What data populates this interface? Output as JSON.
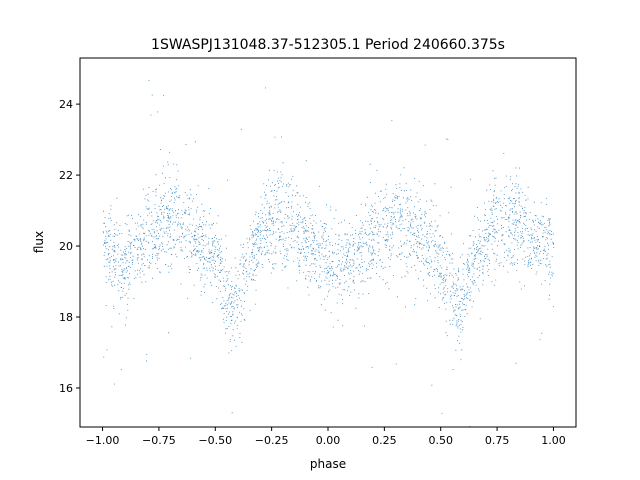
{
  "chart_data": {
    "type": "scatter",
    "title": "1SWASPJ131048.37-512305.1 Period 240660.375s",
    "xlabel": "phase",
    "ylabel": "flux",
    "xlim": [
      -1.1,
      1.1
    ],
    "ylim": [
      14.9,
      25.3
    ],
    "x_ticks": [
      -1.0,
      -0.75,
      -0.5,
      -0.25,
      0.0,
      0.25,
      0.5,
      0.75,
      1.0
    ],
    "x_tick_labels": [
      "−1.00",
      "−0.75",
      "−0.50",
      "−0.25",
      "0.00",
      "0.25",
      "0.50",
      "0.75",
      "1.00"
    ],
    "y_ticks": [
      16,
      18,
      20,
      22,
      24
    ],
    "y_tick_labels": [
      "16",
      "18",
      "20",
      "22",
      "24"
    ],
    "grid": false,
    "legend": "none",
    "marker_color": "#1f77b4",
    "series": [
      {
        "x": [
          -1.0,
          -0.95,
          -0.9,
          -0.85,
          -0.8,
          -0.75,
          -0.7,
          -0.65,
          -0.6,
          -0.55,
          -0.5,
          -0.45,
          -0.42,
          -0.4,
          -0.35,
          -0.3,
          -0.25,
          -0.2,
          -0.15,
          -0.1,
          -0.05,
          0.0,
          0.05,
          0.1,
          0.15,
          0.2,
          0.25,
          0.3,
          0.35,
          0.4,
          0.45,
          0.5,
          0.55,
          0.58,
          0.6,
          0.65,
          0.7,
          0.75,
          0.8,
          0.85,
          0.9,
          0.95,
          1.0
        ],
        "y": [
          20.0,
          19.6,
          19.5,
          19.9,
          20.3,
          20.6,
          20.8,
          20.7,
          20.3,
          20.0,
          19.6,
          18.6,
          18.1,
          18.6,
          19.7,
          20.3,
          20.6,
          20.7,
          20.5,
          20.2,
          19.8,
          19.7,
          19.4,
          19.5,
          19.9,
          20.3,
          20.6,
          20.8,
          20.7,
          20.3,
          20.0,
          19.6,
          18.6,
          18.1,
          18.6,
          19.7,
          20.3,
          20.6,
          20.7,
          20.5,
          20.2,
          20.0,
          20.0
        ],
        "spread": [
          0.8,
          0.8,
          0.8,
          0.8,
          0.8,
          0.9,
          0.9,
          0.9,
          0.8,
          0.8,
          0.8,
          0.9,
          0.8,
          0.9,
          0.8,
          0.8,
          0.9,
          0.9,
          0.9,
          0.8,
          0.8,
          0.8,
          0.8,
          0.8,
          0.8,
          0.8,
          0.9,
          0.9,
          0.9,
          0.8,
          0.8,
          0.8,
          0.9,
          0.8,
          0.9,
          0.8,
          0.8,
          0.9,
          0.9,
          0.9,
          0.8,
          0.8,
          0.8
        ]
      }
    ]
  }
}
